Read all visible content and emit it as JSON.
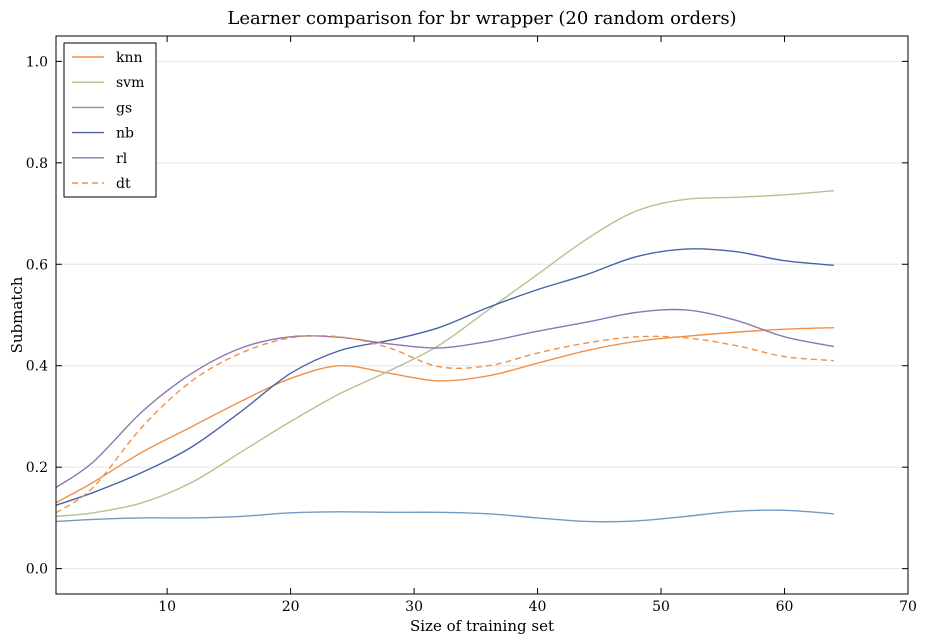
{
  "chart_data": {
    "type": "line",
    "title": "Learner comparison for br wrapper (20 random orders)",
    "xlabel": "Size of training set",
    "ylabel": "Submatch",
    "xlim": [
      1,
      70
    ],
    "ylim": [
      -0.05,
      1.05
    ],
    "xticks": [
      10,
      20,
      30,
      40,
      50,
      60,
      70
    ],
    "yticks": [
      0.0,
      0.2,
      0.4,
      0.6,
      0.8,
      1.0
    ],
    "ytick_labels": [
      "0.0",
      "0.2",
      "0.4",
      "0.6",
      "0.8",
      "1.0"
    ],
    "grid": "horizontal",
    "legend_position": "top-left",
    "series": [
      {
        "name": "knn",
        "color": "#f0914a",
        "dash": "solid",
        "x": [
          1,
          4,
          8,
          12,
          16,
          20,
          24,
          28,
          32,
          36,
          40,
          44,
          48,
          52,
          56,
          60,
          64
        ],
        "y": [
          0.13,
          0.17,
          0.23,
          0.28,
          0.33,
          0.375,
          0.4,
          0.385,
          0.37,
          0.38,
          0.405,
          0.43,
          0.448,
          0.458,
          0.466,
          0.472,
          0.475
        ]
      },
      {
        "name": "svm",
        "color": "#b6c28b",
        "dash": "solid",
        "x": [
          1,
          4,
          8,
          12,
          16,
          20,
          24,
          28,
          32,
          36,
          40,
          44,
          48,
          52,
          56,
          60,
          64
        ],
        "y": [
          0.103,
          0.11,
          0.13,
          0.17,
          0.23,
          0.29,
          0.345,
          0.39,
          0.44,
          0.51,
          0.58,
          0.65,
          0.705,
          0.728,
          0.732,
          0.737,
          0.745
        ]
      },
      {
        "name": "gs",
        "color": "#729bc0",
        "dash": "solid",
        "x": [
          1,
          4,
          8,
          12,
          16,
          20,
          24,
          28,
          32,
          36,
          40,
          44,
          48,
          52,
          56,
          60,
          64
        ],
        "y": [
          0.093,
          0.097,
          0.1,
          0.1,
          0.103,
          0.11,
          0.112,
          0.111,
          0.111,
          0.108,
          0.1,
          0.093,
          0.094,
          0.103,
          0.113,
          0.115,
          0.108
        ]
      },
      {
        "name": "nb",
        "color": "#4a62a6",
        "dash": "solid",
        "x": [
          1,
          4,
          8,
          12,
          16,
          20,
          24,
          28,
          32,
          36,
          40,
          44,
          48,
          52,
          56,
          60,
          64
        ],
        "y": [
          0.125,
          0.15,
          0.19,
          0.24,
          0.31,
          0.385,
          0.43,
          0.45,
          0.475,
          0.515,
          0.55,
          0.58,
          0.615,
          0.63,
          0.625,
          0.607,
          0.598
        ]
      },
      {
        "name": "rl",
        "color": "#8a77b4",
        "dash": "solid",
        "x": [
          1,
          4,
          8,
          12,
          16,
          20,
          24,
          28,
          32,
          36,
          40,
          44,
          48,
          52,
          56,
          60,
          64
        ],
        "y": [
          0.16,
          0.21,
          0.31,
          0.385,
          0.435,
          0.457,
          0.456,
          0.443,
          0.435,
          0.448,
          0.468,
          0.486,
          0.505,
          0.51,
          0.49,
          0.457,
          0.438
        ]
      },
      {
        "name": "dt",
        "color": "#f0914a",
        "dash": "dashed",
        "x": [
          1,
          4,
          8,
          12,
          16,
          20,
          24,
          28,
          32,
          36,
          40,
          44,
          48,
          52,
          56,
          60,
          64
        ],
        "y": [
          0.11,
          0.16,
          0.28,
          0.37,
          0.425,
          0.455,
          0.457,
          0.435,
          0.398,
          0.4,
          0.425,
          0.445,
          0.457,
          0.455,
          0.44,
          0.418,
          0.41
        ]
      }
    ]
  }
}
